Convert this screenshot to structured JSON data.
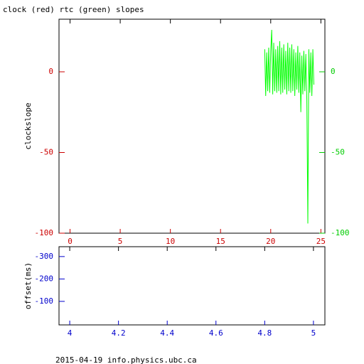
{
  "chart_data": [
    {
      "type": "line",
      "title": "clock (red) rtc (green) slopes",
      "ylabel": "clockslope",
      "xlim": [
        -1.1,
        25.4
      ],
      "xticks": [
        0,
        5,
        10,
        15,
        20,
        25
      ],
      "ylim": [
        -100,
        32.6
      ],
      "yticks": [
        -100,
        -50,
        0
      ],
      "y2lim": [
        -100,
        32.6
      ],
      "y2ticks": [
        -100,
        -50,
        0
      ],
      "axis_color": "#cc0000",
      "axis2_color": "#00cc00",
      "series": [
        {
          "color": "#00ff00",
          "axis": "y2",
          "x": [
            19.4,
            19.5,
            19.6,
            19.7,
            19.8,
            19.9,
            20.0,
            20.1,
            20.2,
            20.3,
            20.4,
            20.5,
            20.6,
            20.7,
            20.8,
            20.9,
            21.0,
            21.1,
            21.2,
            21.3,
            21.4,
            21.5,
            21.6,
            21.7,
            21.8,
            21.9,
            22.0,
            22.1,
            22.2,
            22.3,
            22.4,
            22.5,
            22.6,
            22.7,
            22.8,
            22.9,
            23.0,
            23.1,
            23.2,
            23.3,
            23.4,
            23.5,
            23.6,
            23.7,
            23.8,
            23.9,
            24.0,
            24.1,
            24.2,
            24.3
          ],
          "values": [
            14,
            -15,
            12,
            -12,
            15,
            -13,
            13,
            26,
            -14,
            18,
            -12,
            14,
            -13,
            16,
            -12,
            19,
            -14,
            15,
            -13,
            17,
            -11,
            13,
            -14,
            18,
            -12,
            15,
            -13,
            17,
            -12,
            14,
            -15,
            12,
            -11,
            16,
            -13,
            12,
            -25,
            10,
            -14,
            13,
            -12,
            11,
            -18,
            -94,
            14,
            -13,
            12,
            -15,
            14,
            -8
          ]
        }
      ]
    },
    {
      "type": "line",
      "ylabel": "offset(ms)",
      "xlim": [
        3.956,
        5.047
      ],
      "xticks": [
        4,
        4.2,
        4.4,
        4.6,
        4.8,
        5
      ],
      "ylim": [
        -344,
        5
      ],
      "yticks": [
        -300,
        -200,
        -100
      ],
      "y_inverted": true,
      "axis_color": "#0000cc",
      "series": []
    }
  ],
  "footer": "2015-04-19 info.physics.ubc.ca"
}
